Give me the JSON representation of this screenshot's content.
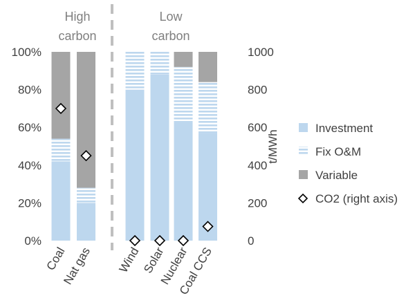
{
  "chart_data": {
    "type": "bar",
    "stacked": true,
    "categories": [
      "Coal",
      "Nat gas",
      "Wind",
      "Solar",
      "Nuclear",
      "Coal CCS"
    ],
    "groups": [
      {
        "label_lines": [
          "High",
          "carbon"
        ],
        "categories": [
          "Coal",
          "Nat gas"
        ]
      },
      {
        "label_lines": [
          "Low",
          "carbon"
        ],
        "categories": [
          "Wind",
          "Solar",
          "Nuclear",
          "Coal CCS"
        ]
      }
    ],
    "series": [
      {
        "name": "Investment",
        "values": [
          42,
          20,
          80,
          88,
          63,
          57
        ],
        "color": "#bdd7ee"
      },
      {
        "name": "Fix O&M",
        "values": [
          12,
          8,
          20,
          12,
          29,
          27
        ],
        "color": "#bdd7ee",
        "pattern": "horizontal-stripes"
      },
      {
        "name": "Variable",
        "values": [
          46,
          72,
          0,
          0,
          8,
          16
        ],
        "color": "#a5a5a5"
      }
    ],
    "markers": {
      "name": "CO2 (right axis)",
      "values": [
        700,
        450,
        0,
        0,
        0,
        75
      ],
      "shape": "diamond"
    },
    "y_left": {
      "min": 0,
      "max": 100,
      "ticks": [
        "0%",
        "20%",
        "40%",
        "60%",
        "80%",
        "100%"
      ]
    },
    "y_right": {
      "min": 0,
      "max": 1000,
      "ticks": [
        "0",
        "200",
        "400",
        "600",
        "800",
        "1000"
      ],
      "label": "t/MWh"
    },
    "legend_position": "right",
    "grid": false,
    "separator": "dashed-vertical-between-groups"
  }
}
